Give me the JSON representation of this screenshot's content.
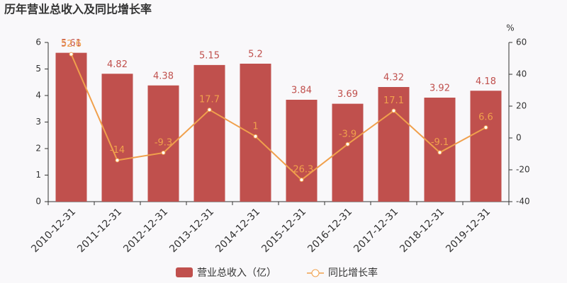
{
  "chart_data": {
    "type": "bar",
    "title": "历年营业总收入及同比增长率",
    "categories": [
      "2010-12-31",
      "2011-12-31",
      "2012-12-31",
      "2013-12-31",
      "2014-12-31",
      "2015-12-31",
      "2016-12-31",
      "2017-12-31",
      "2018-12-31",
      "2019-12-31"
    ],
    "series": [
      {
        "name": "营业总收入（亿）",
        "type": "bar",
        "color": "#c0504d",
        "values": [
          5.61,
          4.82,
          4.38,
          5.15,
          5.2,
          3.84,
          3.69,
          4.32,
          3.92,
          4.18
        ]
      },
      {
        "name": "同比增长率",
        "type": "line",
        "axis": "y2",
        "color": "#f0a04c",
        "values": [
          52.6,
          -14,
          -9.3,
          17.7,
          1,
          -26.3,
          -3.9,
          17.1,
          -9.1,
          6.6
        ]
      }
    ],
    "ylim": [
      0,
      6
    ],
    "yticks": [
      0,
      1,
      2,
      3,
      4,
      5,
      6
    ],
    "y2lim": [
      -40,
      60
    ],
    "y2ticks": [
      -40,
      -20,
      0,
      20,
      40,
      60
    ],
    "y2label": "%"
  }
}
